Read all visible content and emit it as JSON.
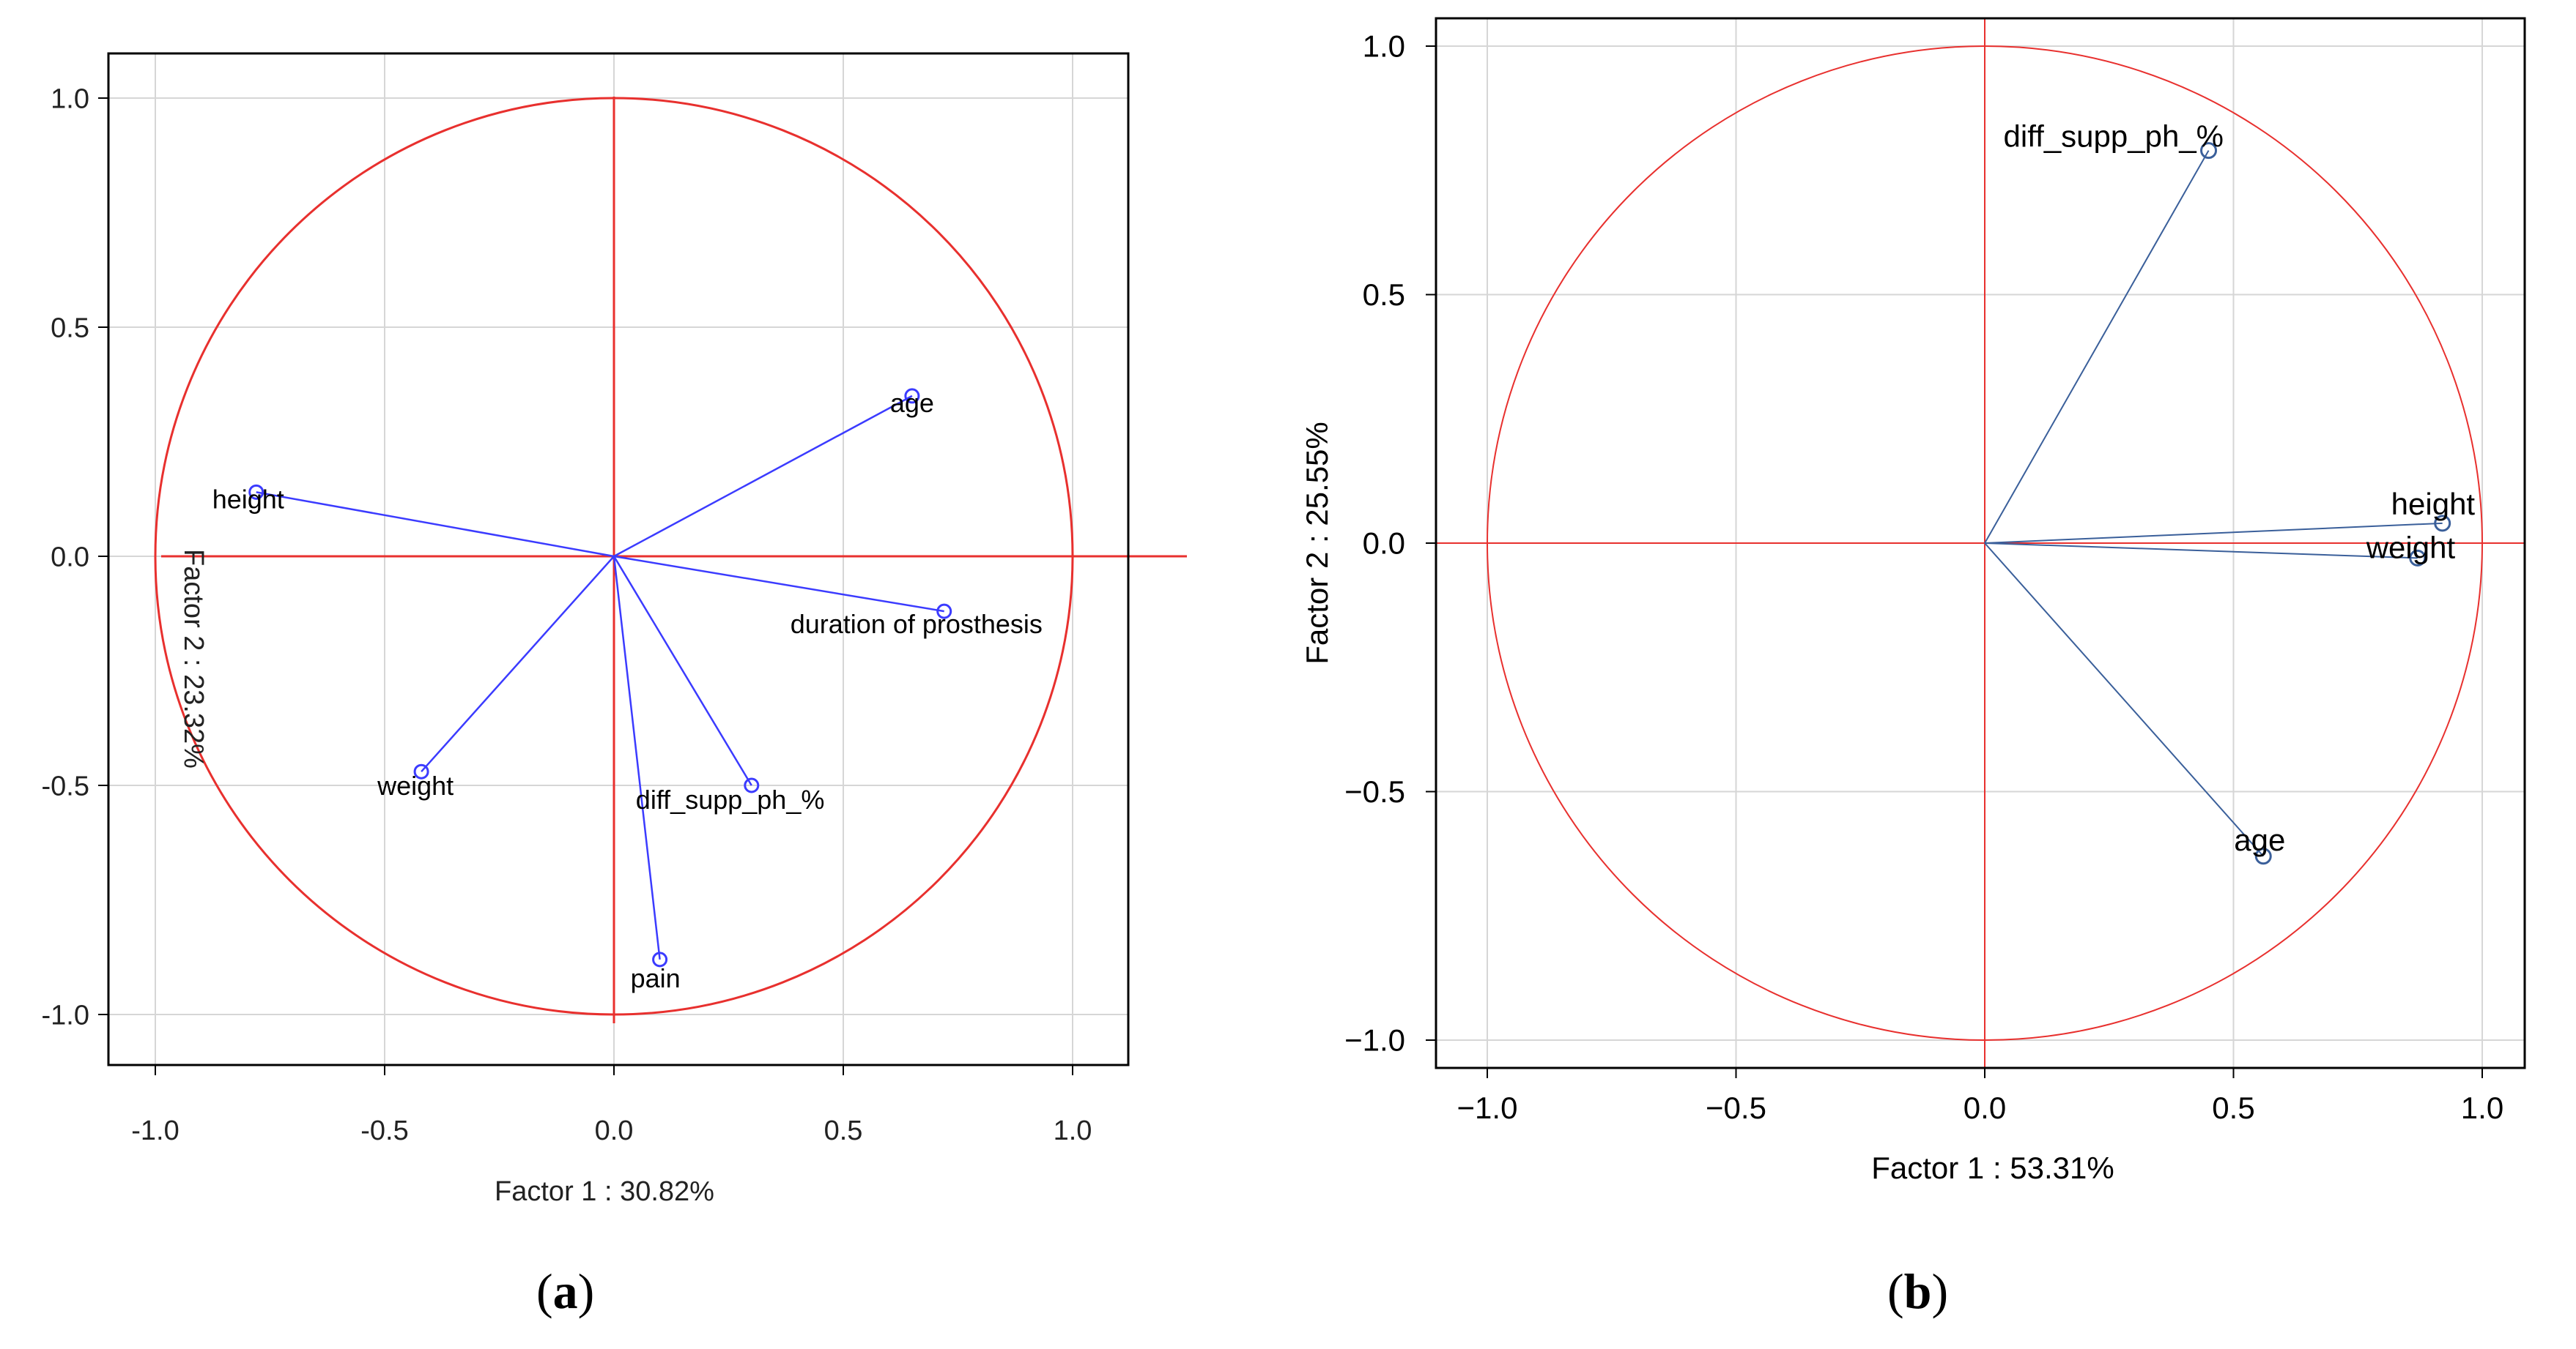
{
  "chart_data": [
    {
      "type": "scatter",
      "subtype": "pca-correlation-circle",
      "panel_label": "a",
      "xlabel": "Factor 1 : 30.82%",
      "ylabel": "Factor 2 : 23.32%",
      "xlim": [
        -1.1,
        1.1
      ],
      "ylim": [
        -1.05,
        1.1
      ],
      "xticks": [
        "-1.0",
        "-0.5",
        "0.0",
        "0.5",
        "1.0"
      ],
      "yticks": [
        "1.0",
        "0.5",
        "0.0",
        "-0.5",
        "-1.0"
      ],
      "xtick_values": [
        -1.0,
        -0.5,
        0.0,
        0.5,
        1.0
      ],
      "ytick_values": [
        1.0,
        0.5,
        0.0,
        -0.5,
        -1.0
      ],
      "grid": true,
      "circle_radius": 1.0,
      "points": [
        {
          "label": "age",
          "x": 0.65,
          "y": 0.35
        },
        {
          "label": "height",
          "x": -0.78,
          "y": 0.14
        },
        {
          "label": "duration of prosthesis",
          "x": 0.72,
          "y": -0.12
        },
        {
          "label": "weight",
          "x": -0.42,
          "y": -0.47
        },
        {
          "label": "diff_supp_ph_%",
          "x": 0.3,
          "y": -0.5
        },
        {
          "label": "pain",
          "x": 0.1,
          "y": -0.88
        }
      ],
      "colors": {
        "circle": "#e8302e",
        "axes": "#e8302e",
        "vectors": "#3b3bff",
        "grid": "#d6d6d6"
      }
    },
    {
      "type": "scatter",
      "subtype": "pca-correlation-circle",
      "panel_label": "b",
      "xlabel": "Factor 1 : 53.31%",
      "ylabel": "Factor 2 : 25.55%",
      "xlim": [
        -1.1,
        1.1
      ],
      "ylim": [
        -1.1,
        1.1
      ],
      "xticks": [
        "−1.0",
        "−0.5",
        "0.0",
        "0.5",
        "1.0"
      ],
      "yticks": [
        "1.0",
        "0.5",
        "0.0",
        "−0.5",
        "−1.0"
      ],
      "xtick_values": [
        -1.0,
        -0.5,
        0.0,
        0.5,
        1.0
      ],
      "ytick_values": [
        1.0,
        0.5,
        0.0,
        -0.5,
        -1.0
      ],
      "grid": true,
      "circle_radius": 1.0,
      "points": [
        {
          "label": "diff_supp_ph_%",
          "x": 0.45,
          "y": 0.79
        },
        {
          "label": "height",
          "x": 0.92,
          "y": 0.04
        },
        {
          "label": "weight",
          "x": 0.87,
          "y": -0.03
        },
        {
          "label": "age",
          "x": 0.56,
          "y": -0.63
        }
      ],
      "colors": {
        "circle": "#e8302e",
        "axes": "#e8302e",
        "vectors": "#3a5f9a",
        "grid": "#d6d6d6"
      }
    }
  ]
}
